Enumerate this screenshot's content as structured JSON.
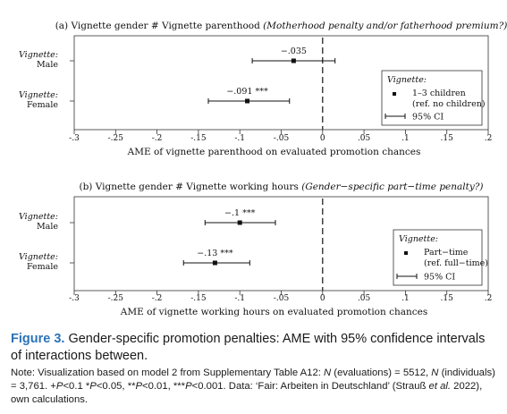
{
  "chart_data": [
    {
      "type": "scatter",
      "title_plain": "(a) Vignette gender # Vignette parenthood",
      "title_italic": "(Motherhood penalty and/or fatherhood premium?)",
      "xlabel": "AME of vignette parenthood on evaluated promotion chances",
      "xlim": [
        -0.3,
        0.2
      ],
      "xticks": [
        -0.3,
        -0.25,
        -0.2,
        -0.15,
        -0.1,
        -0.05,
        0,
        0.05,
        0.1,
        0.15,
        0.2
      ],
      "xtick_labels": [
        "-.3",
        "-.25",
        "-.2",
        "-.15",
        "-.1",
        "-.05",
        "0",
        ".05",
        ".1",
        ".15",
        ".2"
      ],
      "reference_line": 0,
      "group_label": "Vignette:",
      "categories": [
        "Male",
        "Female"
      ],
      "series": [
        {
          "name": "1–3 children",
          "name_sub": "(ref. no children)",
          "points": [
            {
              "category": "Male",
              "estimate": -0.035,
              "ci": [
                -0.085,
                0.015
              ],
              "label": "−.035"
            },
            {
              "category": "Female",
              "estimate": -0.091,
              "ci": [
                -0.138,
                -0.04
              ],
              "label": "−.091 ***"
            }
          ]
        }
      ],
      "legend": {
        "title": "Vignette:",
        "point_label": "1–3 children",
        "point_sub": "(ref. no children)",
        "ci_label": "95% CI",
        "position": "right"
      }
    },
    {
      "type": "scatter",
      "title_plain": "(b) Vignette gender # Vignette working hours",
      "title_italic": "(Gender−specific part−time penalty?)",
      "xlabel": "AME of vignette working hours on evaluated promotion chances",
      "xlim": [
        -0.3,
        0.2
      ],
      "xticks": [
        -0.3,
        -0.25,
        -0.2,
        -0.15,
        -0.1,
        -0.05,
        0,
        0.05,
        0.1,
        0.15,
        0.2
      ],
      "xtick_labels": [
        "-.3",
        "-.25",
        "-.2",
        "-.15",
        "-.1",
        "-.05",
        "0",
        ".05",
        ".1",
        ".15",
        ".2"
      ],
      "reference_line": 0,
      "group_label": "Vignette:",
      "categories": [
        "Male",
        "Female"
      ],
      "series": [
        {
          "name": "Part−time",
          "name_sub": "(ref. full−time)",
          "points": [
            {
              "category": "Male",
              "estimate": -0.1,
              "ci": [
                -0.142,
                -0.057
              ],
              "label": "−.1 ***"
            },
            {
              "category": "Female",
              "estimate": -0.13,
              "ci": [
                -0.168,
                -0.088
              ],
              "label": "−.13 ***"
            }
          ]
        }
      ],
      "legend": {
        "title": "Vignette:",
        "point_label": "Part−time",
        "point_sub": "(ref. full−time)",
        "ci_label": "95% CI",
        "position": "right"
      }
    }
  ],
  "caption": {
    "label": "Figure 3.",
    "text": "Gender-specific promotion penalties: AME with 95% confidence intervals of interactions between."
  },
  "note": {
    "p1": "Note: Visualization based on model 2 from Supplementary Table A12: ",
    "n1": "N",
    "p2": " (evaluations) = 5512, ",
    "n2": "N",
    "p3": " (individuals) = 3,761. +",
    "p_a": "P",
    "p4": "<0.1 *",
    "p_b": "P",
    "p5": "<0.05, **",
    "p_c": "P",
    "p6": "<0.01, ***",
    "p_d": "P",
    "p7": "<0.001. Data: ‘Fair: Arbeiten in Deutschland’ (Strauß ",
    "etal": "et al.",
    "p8": " 2022), own calculations."
  }
}
